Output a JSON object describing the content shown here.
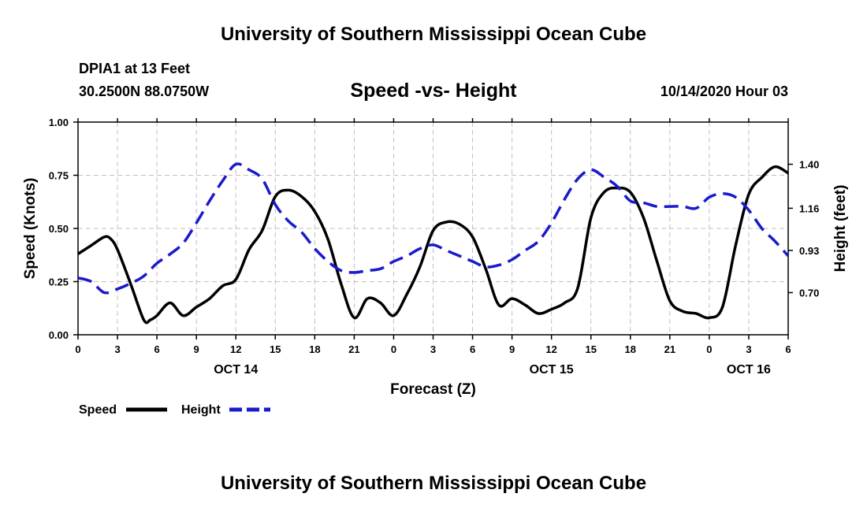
{
  "header": {
    "top_title": "University of Southern Mississippi Ocean Cube",
    "station": "DPIA1 at 13 Feet",
    "coords": "30.2500N 88.0750W",
    "chart_title": "Speed -vs- Height",
    "timestamp": "10/14/2020 Hour 03",
    "bottom_title": "University of Southern Mississippi Ocean Cube"
  },
  "colors": {
    "speed": "#000000",
    "height": "#1a1acc",
    "grid": "#bfbfbf"
  },
  "chart_data": {
    "type": "line",
    "title": "Speed -vs- Height",
    "xlabel": "Forecast (Z)",
    "ylabel_left": "Speed (Knots)",
    "ylabel_right": "Height (feet)",
    "x_range": [
      0,
      54
    ],
    "y_left_range": [
      0,
      1
    ],
    "y_right_range": [
      0.47,
      1.63
    ],
    "y_left_ticks": [
      "0.00",
      "0.25",
      "0.50",
      "0.75",
      "1.00"
    ],
    "y_left_tick_values": [
      0,
      0.25,
      0.5,
      0.75,
      1.0
    ],
    "y_right_ticks": [
      "0.70",
      "0.93",
      "1.16",
      "1.40"
    ],
    "y_right_tick_values": [
      0.7,
      0.93,
      1.16,
      1.4
    ],
    "x_ticks": [
      "0",
      "3",
      "6",
      "9",
      "12",
      "15",
      "18",
      "21",
      "0",
      "3",
      "6",
      "9",
      "12",
      "15",
      "18",
      "21",
      "0",
      "3",
      "6"
    ],
    "x_tick_values": [
      0,
      3,
      6,
      9,
      12,
      15,
      18,
      21,
      24,
      27,
      30,
      33,
      36,
      39,
      42,
      45,
      48,
      51,
      54
    ],
    "day_labels": [
      {
        "label": "OCT 14",
        "x": 12
      },
      {
        "label": "OCT 15",
        "x": 36
      },
      {
        "label": "OCT 16",
        "x": 51
      }
    ],
    "grid": true,
    "legend_position": "bottom-left",
    "series": [
      {
        "name": "Speed",
        "axis": "left",
        "style": "solid",
        "x": [
          0,
          1,
          2,
          2.5,
          3,
          4,
          5,
          5.5,
          6,
          7,
          8,
          9,
          10,
          11,
          12,
          13,
          14,
          15,
          16,
          17,
          18,
          19,
          20,
          21,
          22,
          23,
          24,
          25,
          26,
          27,
          28,
          29,
          30,
          31,
          32,
          33,
          34,
          35,
          36,
          37,
          38,
          39,
          40,
          41,
          42,
          43,
          44,
          45,
          46,
          47,
          48,
          49,
          50,
          51,
          52,
          53,
          54
        ],
        "values": [
          0.38,
          0.42,
          0.46,
          0.45,
          0.4,
          0.24,
          0.07,
          0.07,
          0.09,
          0.15,
          0.09,
          0.13,
          0.17,
          0.23,
          0.26,
          0.4,
          0.49,
          0.65,
          0.68,
          0.65,
          0.58,
          0.45,
          0.24,
          0.08,
          0.17,
          0.15,
          0.09,
          0.19,
          0.32,
          0.49,
          0.53,
          0.52,
          0.46,
          0.31,
          0.14,
          0.17,
          0.14,
          0.1,
          0.12,
          0.15,
          0.22,
          0.55,
          0.67,
          0.69,
          0.67,
          0.55,
          0.35,
          0.16,
          0.11,
          0.1,
          0.08,
          0.13,
          0.42,
          0.66,
          0.74,
          0.79,
          0.76
        ]
      },
      {
        "name": "Height",
        "axis": "right",
        "style": "dashed",
        "x": [
          0,
          1,
          2,
          3,
          4,
          5,
          6,
          7,
          8,
          9,
          10,
          11,
          12,
          13,
          14,
          15,
          16,
          17,
          18,
          19,
          20,
          21,
          22,
          23,
          24,
          25,
          26,
          27,
          28,
          29,
          30,
          31,
          32,
          33,
          34,
          35,
          36,
          37,
          38,
          39,
          40,
          41,
          42,
          43,
          44,
          45,
          46,
          47,
          48,
          49,
          50,
          51,
          52,
          53,
          54
        ],
        "values": [
          0.78,
          0.76,
          0.7,
          0.72,
          0.75,
          0.79,
          0.86,
          0.91,
          0.97,
          1.08,
          1.2,
          1.31,
          1.4,
          1.37,
          1.32,
          1.18,
          1.09,
          1.03,
          0.94,
          0.87,
          0.82,
          0.81,
          0.82,
          0.83,
          0.87,
          0.9,
          0.94,
          0.96,
          0.93,
          0.9,
          0.87,
          0.84,
          0.85,
          0.88,
          0.93,
          0.98,
          1.08,
          1.21,
          1.32,
          1.37,
          1.33,
          1.28,
          1.2,
          1.19,
          1.17,
          1.17,
          1.17,
          1.16,
          1.22,
          1.24,
          1.22,
          1.15,
          1.05,
          0.98,
          0.9
        ]
      }
    ]
  }
}
